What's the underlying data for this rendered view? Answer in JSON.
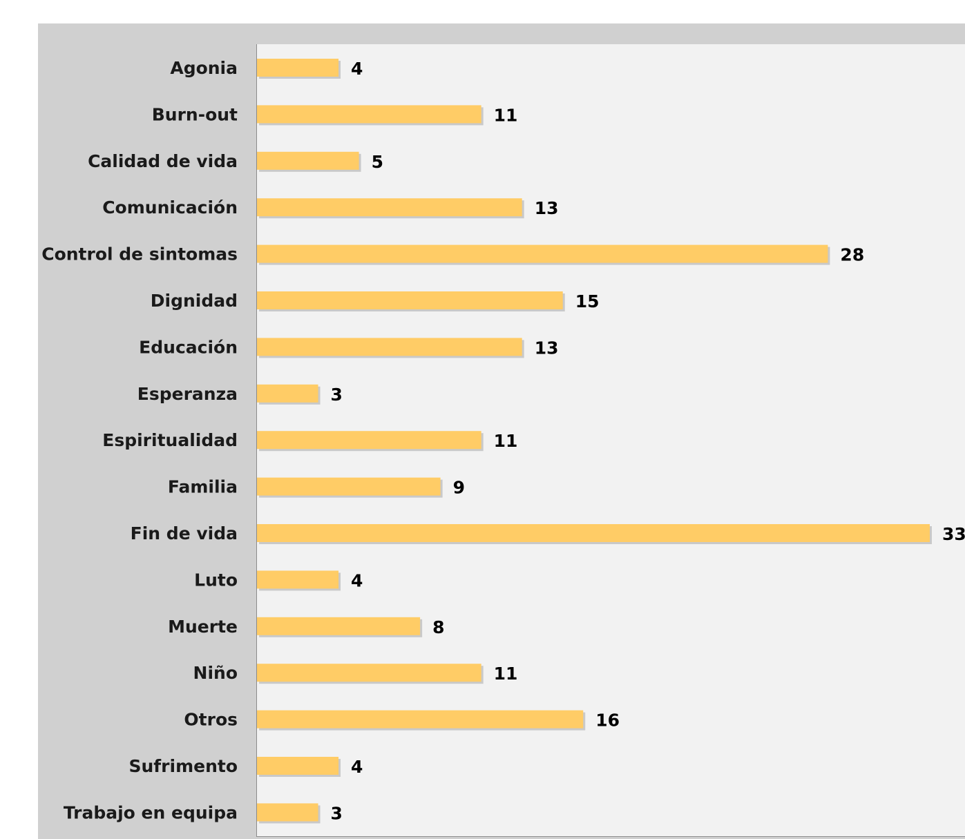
{
  "chart_data": {
    "type": "bar",
    "orientation": "horizontal",
    "categories": [
      "Agonia",
      "Burn-out",
      "Calidad de vida",
      "Comunicación",
      "Control de sintomas",
      "Dignidad",
      "Educación",
      "Esperanza",
      "Espiritualidad",
      "Familia",
      "Fin de vida",
      "Luto",
      "Muerte",
      "Niño ",
      "Otros",
      "Sufrimento",
      "Trabajo en equipa"
    ],
    "values": [
      4,
      11,
      5,
      13,
      28,
      15,
      13,
      3,
      11,
      9,
      33,
      4,
      8,
      11,
      16,
      4,
      3
    ],
    "value_labels": [
      "4",
      "11",
      "5",
      "13",
      "28",
      "15",
      "13",
      "3",
      "11",
      "9",
      "33",
      "4",
      "8",
      "11",
      "16",
      "4",
      "3"
    ],
    "title": "",
    "xlabel": "",
    "ylabel": "",
    "xlim": [
      0,
      33
    ],
    "grid": false,
    "legend": "none",
    "colors": {
      "bar": "#ffcc66",
      "bar_shadow": "#c9c9c9",
      "frame_background": "#d0d0d0",
      "plot_background": "#f2f2f2",
      "axis": "#8a8a8a",
      "text": "#000000"
    }
  }
}
